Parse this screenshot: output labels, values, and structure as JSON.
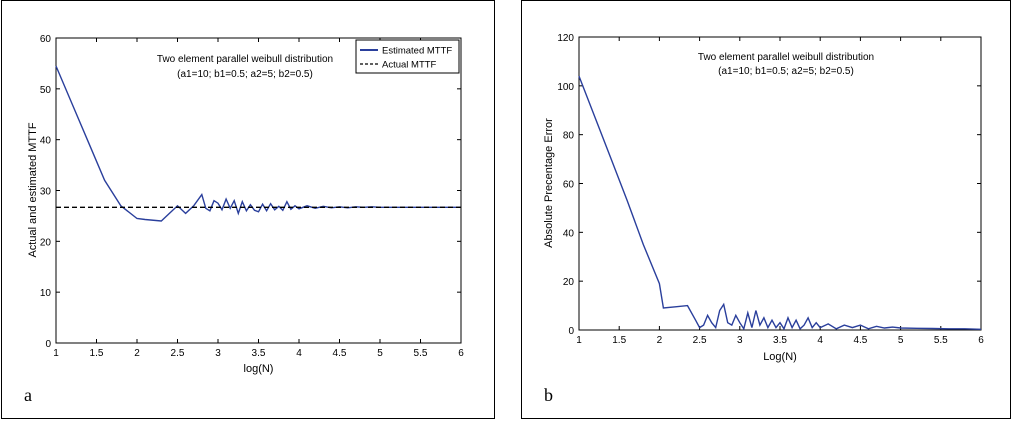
{
  "panels": [
    {
      "letter": "a"
    },
    {
      "letter": "b"
    }
  ],
  "chart_data": [
    {
      "type": "line",
      "title": "Two element parallel weibull distribution",
      "subtitle": "(a1=10; b1=0.5; a2=5; b2=0.5)",
      "xlabel": "log(N)",
      "ylabel": "Actual and estimated MTTF",
      "xlim": [
        1,
        6
      ],
      "ylim": [
        0,
        60
      ],
      "xticks": [
        "1",
        "1.5",
        "2",
        "2.5",
        "3",
        "3.5",
        "4",
        "4.5",
        "5",
        "5.5",
        "6"
      ],
      "yticks": [
        "0",
        "10",
        "20",
        "30",
        "40",
        "50",
        "60"
      ],
      "grid": false,
      "legend": "top-right",
      "colors": {
        "estimated": "#2a3f9c",
        "actual": "#000000"
      },
      "series": [
        {
          "name": "Estimated MTTF",
          "style": "solid",
          "x": [
            1,
            1.2,
            1.4,
            1.6,
            1.8,
            2,
            2.1,
            2.3,
            2.4,
            2.5,
            2.6,
            2.7,
            2.8,
            2.85,
            2.9,
            2.95,
            3,
            3.05,
            3.1,
            3.15,
            3.2,
            3.25,
            3.3,
            3.35,
            3.4,
            3.45,
            3.5,
            3.55,
            3.6,
            3.65,
            3.7,
            3.75,
            3.8,
            3.85,
            3.9,
            3.95,
            4,
            4.1,
            4.2,
            4.3,
            4.4,
            4.5,
            4.6,
            4.7,
            4.8,
            4.9,
            5,
            5.2,
            5.4,
            5.6,
            5.8,
            6
          ],
          "y": [
            54.5,
            47,
            39.5,
            32,
            27,
            24.5,
            24.3,
            24,
            25.5,
            27,
            25.5,
            27,
            29.2,
            26.5,
            26,
            28,
            27.5,
            26.2,
            28.3,
            26.5,
            28,
            25.5,
            27.8,
            26,
            27.2,
            26.1,
            25.8,
            27.3,
            26,
            27.4,
            26.2,
            26.9,
            26.1,
            27.8,
            26.3,
            27,
            26.4,
            27,
            26.5,
            26.9,
            26.6,
            26.8,
            26.6,
            26.8,
            26.7,
            26.8,
            26.7,
            26.7,
            26.7,
            26.7,
            26.7,
            26.7
          ]
        },
        {
          "name": "Actual MTTF",
          "style": "dashed",
          "x": [
            1,
            6
          ],
          "y": [
            26.7,
            26.7
          ]
        }
      ]
    },
    {
      "type": "line",
      "title": "Two element parallel weibull distribution",
      "subtitle": "(a1=10; b1=0.5; a2=5; b2=0.5)",
      "xlabel": "Log(N)",
      "ylabel": "Absolute Precentage Error",
      "xlim": [
        1,
        6
      ],
      "ylim": [
        0,
        120
      ],
      "xticks": [
        "1",
        "1.5",
        "2",
        "2.5",
        "3",
        "3.5",
        "4",
        "4.5",
        "5",
        "5.5",
        "6"
      ],
      "yticks": [
        "0",
        "20",
        "40",
        "60",
        "80",
        "100",
        "120"
      ],
      "grid": false,
      "colors": {
        "line": "#2a3f9c"
      },
      "series": [
        {
          "style": "solid",
          "x": [
            1,
            1.2,
            1.4,
            1.6,
            1.8,
            2,
            2.05,
            2.2,
            2.35,
            2.45,
            2.5,
            2.55,
            2.6,
            2.65,
            2.7,
            2.75,
            2.8,
            2.85,
            2.9,
            2.95,
            3,
            3.05,
            3.1,
            3.15,
            3.2,
            3.25,
            3.3,
            3.35,
            3.4,
            3.45,
            3.5,
            3.55,
            3.6,
            3.65,
            3.7,
            3.75,
            3.8,
            3.85,
            3.9,
            3.95,
            4,
            4.1,
            4.2,
            4.3,
            4.4,
            4.5,
            4.6,
            4.7,
            4.8,
            4.9,
            5,
            5.2,
            5.4,
            5.6,
            5.8,
            6
          ],
          "y": [
            104,
            87,
            70,
            53,
            35,
            19,
            9,
            9.5,
            10,
            4,
            1,
            2,
            6,
            3,
            1,
            8,
            10.5,
            3,
            2,
            6,
            3,
            0.5,
            7,
            1,
            8,
            2,
            5,
            1,
            4,
            1,
            3,
            0.5,
            5,
            1,
            4,
            0.5,
            2,
            5,
            1,
            3,
            1,
            2.5,
            0.5,
            2,
            1,
            2,
            0.5,
            1.5,
            0.8,
            1.2,
            0.8,
            0.7,
            0.6,
            0.5,
            0.5,
            0.3
          ]
        }
      ]
    }
  ]
}
